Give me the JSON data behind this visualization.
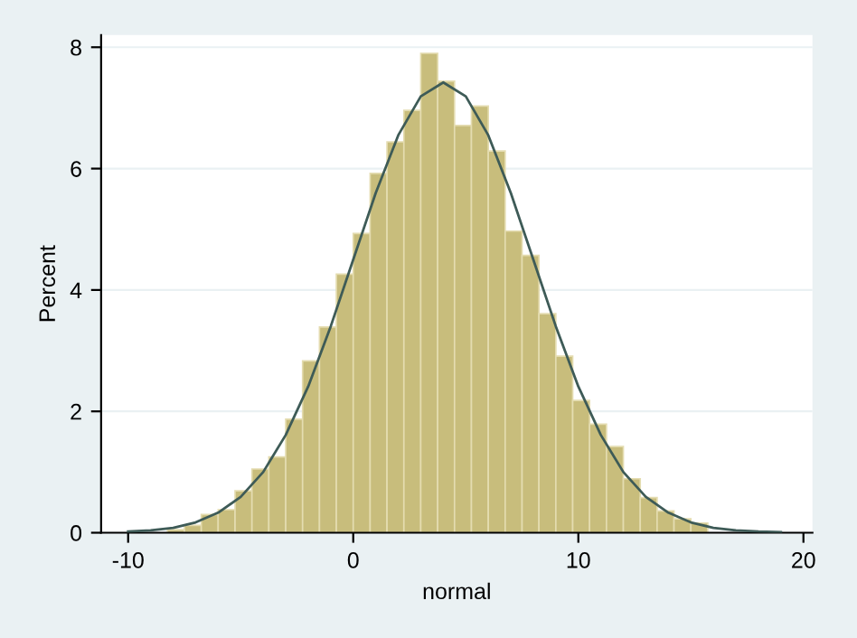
{
  "chart_data": {
    "type": "histogram",
    "xlabel": "normal",
    "ylabel": "Percent",
    "xlim": [
      -11.2,
      20.4
    ],
    "ylim": [
      0,
      8.2
    ],
    "xticks": [
      -10,
      0,
      10,
      20
    ],
    "yticks": [
      0,
      2,
      4,
      6,
      8
    ],
    "grid": "y",
    "series": [
      {
        "type": "histogram",
        "color": "#c8bd7c",
        "bins": [
          -8.25,
          -7.5,
          -6.75,
          -6,
          -5.25,
          -4.5,
          -3.75,
          -3,
          -2.25,
          -1.5,
          -0.75,
          0,
          0.75,
          1.5,
          2.25,
          3,
          3.75,
          4.5,
          5.25,
          6,
          6.75,
          7.5,
          8.25,
          9,
          9.75,
          10.5,
          11.25,
          12,
          12.75,
          13.5,
          14.25,
          15,
          15.75,
          16.5,
          17.25
        ],
        "values": [
          0.05,
          0.12,
          0.3,
          0.38,
          0.69,
          1.05,
          1.25,
          1.87,
          2.83,
          3.39,
          4.26,
          4.93,
          5.92,
          6.44,
          6.96,
          7.9,
          7.44,
          6.71,
          7.03,
          6.29,
          4.97,
          4.57,
          3.61,
          2.91,
          2.18,
          1.79,
          1.42,
          0.89,
          0.58,
          0.36,
          0.23,
          0.16,
          null,
          null
        ]
      },
      {
        "type": "line",
        "color": "#3e5b57",
        "x": [
          -10,
          -9,
          -8,
          -7,
          -6,
          -5,
          -4,
          -3,
          -2,
          -1,
          0,
          1,
          2,
          3,
          4,
          5,
          6,
          7,
          8,
          9,
          10,
          11,
          12,
          13,
          14,
          15,
          16,
          17,
          18,
          19
        ],
        "values": [
          0.02,
          0.04,
          0.08,
          0.17,
          0.33,
          0.59,
          1.0,
          1.61,
          2.41,
          3.4,
          4.5,
          5.6,
          6.55,
          7.19,
          7.42,
          7.19,
          6.55,
          5.6,
          4.5,
          3.4,
          2.41,
          1.61,
          1.0,
          0.59,
          0.33,
          0.17,
          0.08,
          0.04,
          0.02,
          0.01
        ]
      }
    ]
  }
}
